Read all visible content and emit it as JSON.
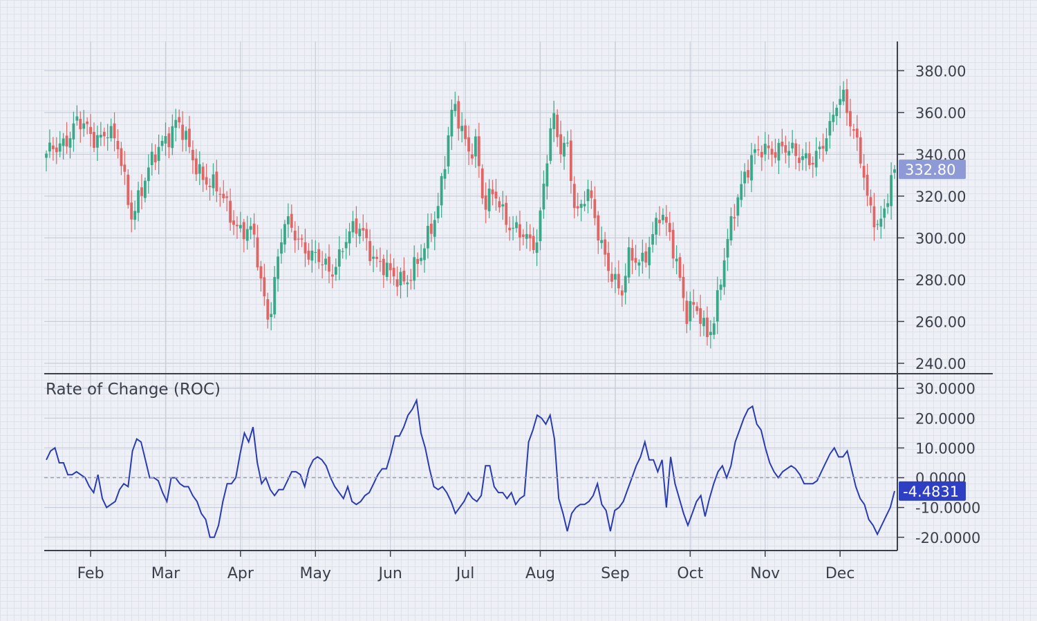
{
  "chart_data": {
    "type": "candlestick",
    "price": {
      "yticks": [
        "380.00",
        "360.00",
        "340.00",
        "320.00",
        "300.00",
        "280.00",
        "260.00",
        "240.00"
      ],
      "ytick_values": [
        380,
        360,
        340,
        320,
        300,
        280,
        260,
        240
      ],
      "ylim": [
        236,
        394
      ],
      "last_value_label": "332.80",
      "last_value": 332.8,
      "up_color": "#3aa888",
      "down_color": "#e06565",
      "badge_color": "#8d9ad6",
      "anchors": [
        [
          0,
          338
        ],
        [
          4,
          346
        ],
        [
          8,
          355
        ],
        [
          12,
          348
        ],
        [
          16,
          352
        ],
        [
          19,
          340
        ],
        [
          22,
          312
        ],
        [
          26,
          328
        ],
        [
          30,
          346
        ],
        [
          34,
          356
        ],
        [
          38,
          338
        ],
        [
          42,
          328
        ],
        [
          46,
          318
        ],
        [
          50,
          306
        ],
        [
          54,
          300
        ],
        [
          56,
          278
        ],
        [
          58,
          262
        ],
        [
          60,
          286
        ],
        [
          62,
          306
        ],
        [
          66,
          300
        ],
        [
          70,
          290
        ],
        [
          74,
          283
        ],
        [
          78,
          300
        ],
        [
          82,
          304
        ],
        [
          86,
          290
        ],
        [
          90,
          280
        ],
        [
          94,
          282
        ],
        [
          98,
          290
        ],
        [
          102,
          316
        ],
        [
          104,
          340
        ],
        [
          106,
          362
        ],
        [
          108,
          352
        ],
        [
          110,
          342
        ],
        [
          112,
          348
        ],
        [
          114,
          314
        ],
        [
          117,
          320
        ],
        [
          120,
          310
        ],
        [
          124,
          300
        ],
        [
          126,
          296
        ],
        [
          128,
          300
        ],
        [
          130,
          334
        ],
        [
          132,
          358
        ],
        [
          134,
          340
        ],
        [
          136,
          344
        ],
        [
          138,
          312
        ],
        [
          141,
          322
        ],
        [
          144,
          300
        ],
        [
          147,
          286
        ],
        [
          150,
          272
        ],
        [
          152,
          290
        ],
        [
          155,
          290
        ],
        [
          158,
          300
        ],
        [
          160,
          310
        ],
        [
          163,
          300
        ],
        [
          165,
          284
        ],
        [
          167,
          262
        ],
        [
          169,
          266
        ],
        [
          172,
          255
        ],
        [
          174,
          262
        ],
        [
          176,
          282
        ],
        [
          178,
          300
        ],
        [
          180,
          318
        ],
        [
          182,
          332
        ],
        [
          184,
          340
        ],
        [
          188,
          340
        ],
        [
          192,
          346
        ],
        [
          196,
          336
        ],
        [
          200,
          340
        ],
        [
          204,
          348
        ],
        [
          206,
          364
        ],
        [
          208,
          370
        ],
        [
          210,
          354
        ],
        [
          212,
          340
        ],
        [
          214,
          316
        ],
        [
          217,
          306
        ],
        [
          219,
          320
        ],
        [
          221,
          330
        ]
      ]
    },
    "roc": {
      "title": "Rate of Change (ROC)",
      "yticks": [
        "30.0000",
        "20.0000",
        "10.0000",
        "0.0000",
        "-10.0000",
        "-20.0000"
      ],
      "ytick_values": [
        30,
        20,
        10,
        0,
        -10,
        -20
      ],
      "ylim": [
        -24,
        34
      ],
      "last_value_label": "-4.4831",
      "last_value": -4.4831,
      "line_color": "#2a3bb0",
      "badge_color": "#2e3fc4",
      "zero_line": true,
      "values": [
        6,
        9,
        10,
        5,
        5,
        1,
        1,
        2,
        1,
        0,
        -3,
        -5,
        1,
        -7,
        -10,
        -9,
        -8,
        -4,
        -2,
        -3,
        9,
        13,
        12,
        6,
        0,
        0,
        -1,
        -5,
        -8,
        0,
        0,
        -2,
        -3,
        -3,
        -6,
        -8,
        -12,
        -14,
        -20,
        -20,
        -16,
        -8,
        -2,
        -2,
        0,
        8,
        15,
        12,
        17,
        5,
        -2,
        0,
        -4,
        -6,
        -4,
        -4,
        -1,
        2,
        2,
        1,
        -3,
        3,
        6,
        7,
        6,
        4,
        0,
        -3,
        -5,
        -7,
        -3,
        -8,
        -9,
        -8,
        -6,
        -5,
        -2,
        1,
        3,
        3,
        8,
        14,
        14,
        17,
        21,
        23,
        26,
        15,
        10,
        3,
        -3,
        -4,
        -3,
        -5,
        -8,
        -12,
        -10,
        -8,
        -5,
        -7,
        -8,
        -6,
        4,
        4,
        -3,
        -5,
        -5,
        -7,
        -5,
        -9,
        -7,
        -6,
        12,
        16,
        21,
        20,
        18,
        21,
        13,
        -7,
        -12,
        -18,
        -12,
        -10,
        -9,
        -9,
        -8,
        -6,
        -2,
        -9,
        -11,
        -18,
        -11,
        -10,
        -8,
        -4,
        0,
        4,
        7,
        12,
        6,
        6,
        2,
        6,
        -10,
        7,
        -2,
        -7,
        -12,
        -16,
        -12,
        -8,
        -6,
        -13,
        -7,
        -2,
        2,
        4,
        0,
        4,
        12,
        16,
        20,
        23,
        24,
        18,
        16,
        10,
        5,
        2,
        0,
        2,
        3,
        4,
        3,
        1,
        -2,
        -2,
        -2,
        -1,
        2,
        5,
        8,
        10,
        7,
        7,
        9,
        3,
        -3,
        -7,
        -9,
        -14,
        -16,
        -19,
        -16,
        -13,
        -10,
        -4.4831
      ]
    },
    "x": {
      "labels": [
        "Feb",
        "Mar",
        "Apr",
        "May",
        "Jun",
        "Jul",
        "Aug",
        "Sep",
        "Oct",
        "Nov",
        "Dec"
      ],
      "label_bars": [
        13,
        35,
        57,
        79,
        101,
        123,
        145,
        167,
        189,
        211,
        233
      ]
    },
    "grid": true,
    "bars": 250
  }
}
